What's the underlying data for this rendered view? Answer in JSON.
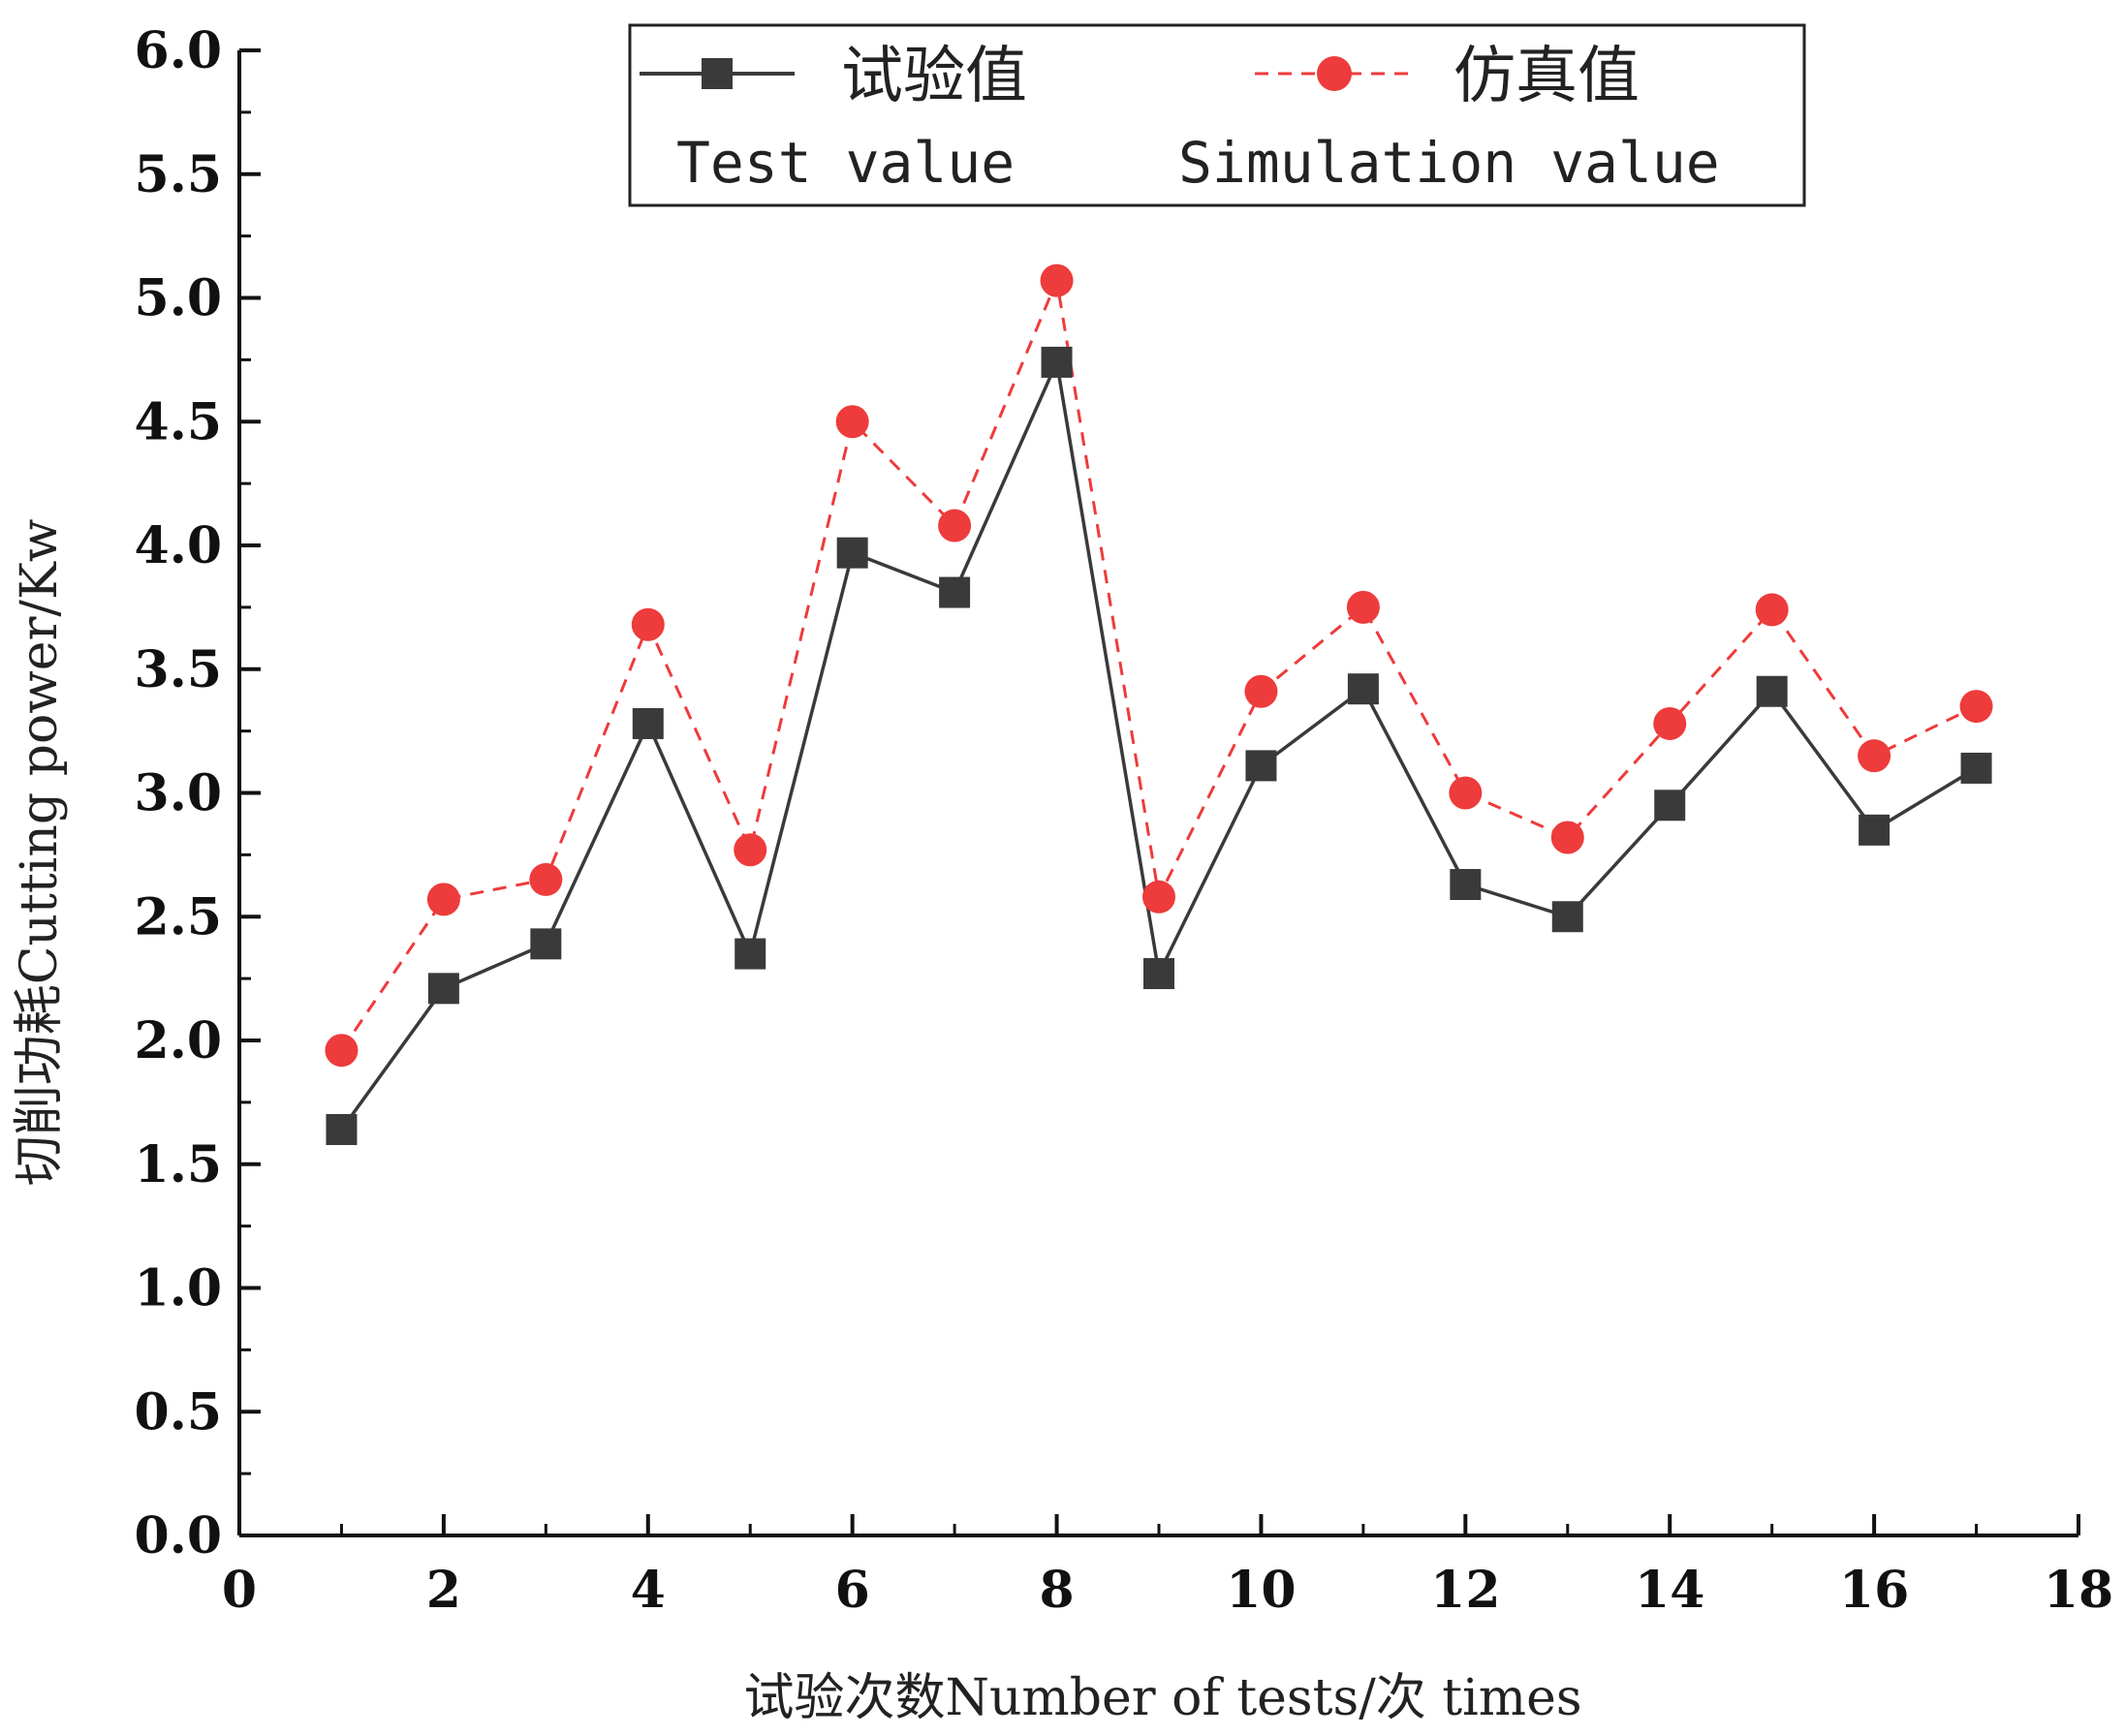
{
  "chart_data": {
    "type": "line",
    "title": "",
    "xlabel": "试验次数Number of tests/次 times",
    "ylabel": "切削功耗Cutting power/Kw",
    "xlim": [
      0,
      18
    ],
    "ylim": [
      0.0,
      6.0
    ],
    "x_ticks": [
      0,
      2,
      4,
      6,
      8,
      10,
      12,
      14,
      16,
      18
    ],
    "x_tick_labels": [
      "0",
      "2",
      "4",
      "6",
      "8",
      "10",
      "12",
      "14",
      "16",
      "18"
    ],
    "y_ticks": [
      0.0,
      0.5,
      1.0,
      1.5,
      2.0,
      2.5,
      3.0,
      3.5,
      4.0,
      4.5,
      5.0,
      5.5,
      6.0
    ],
    "y_tick_labels": [
      "0.0",
      "0.5",
      "1.0",
      "1.5",
      "2.0",
      "2.5",
      "3.0",
      "3.5",
      "4.0",
      "4.5",
      "5.0",
      "5.5",
      "6.0"
    ],
    "x": [
      1,
      2,
      3,
      4,
      5,
      6,
      7,
      8,
      9,
      10,
      11,
      12,
      13,
      14,
      15,
      16,
      17
    ],
    "series": [
      {
        "name": "试验值",
        "name_en": "Test value",
        "color": "#3a3a3a",
        "marker": "square",
        "line_style": "solid",
        "values": [
          1.64,
          2.21,
          2.39,
          3.28,
          2.35,
          3.97,
          3.81,
          4.74,
          2.27,
          3.11,
          3.42,
          2.63,
          2.5,
          2.95,
          3.41,
          2.85,
          3.1
        ]
      },
      {
        "name": "仿真值",
        "name_en": "Simulation value",
        "color": "#ee3b3b",
        "marker": "circle",
        "line_style": "dashed",
        "values": [
          1.96,
          2.57,
          2.65,
          3.68,
          2.77,
          4.5,
          4.08,
          5.07,
          2.58,
          3.41,
          3.75,
          3.0,
          2.82,
          3.28,
          3.74,
          3.15,
          3.35
        ]
      }
    ],
    "legend": "top-center",
    "grid": false
  }
}
